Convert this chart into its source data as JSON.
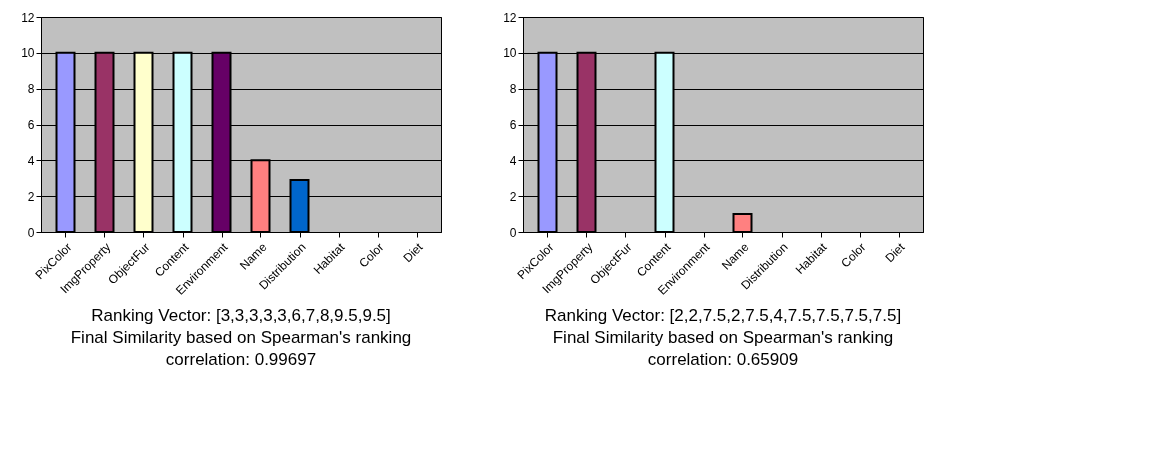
{
  "chart_data": [
    {
      "type": "bar",
      "categories": [
        "PixColor",
        "ImgProperty",
        "ObjectFur",
        "Content",
        "Environment",
        "Name",
        "Distribution",
        "Habitat",
        "Color",
        "Diet"
      ],
      "values": [
        10,
        10,
        10,
        10,
        10,
        4,
        2.9,
        0,
        0,
        0
      ],
      "colors": [
        "#9999ff",
        "#993366",
        "#ffffcc",
        "#ccffff",
        "#660066",
        "#ff8080",
        "#0066cc",
        null,
        null,
        null
      ],
      "ylim": [
        0,
        12
      ],
      "yticks": [
        0,
        2,
        4,
        6,
        8,
        10,
        12
      ],
      "grid": "y",
      "annotations": [
        "Ranking Vector: [3,3,3,3,3,6,7,8,9.5,9.5]",
        "Final Similarity based on Spearman's ranking correlation: 0.99697"
      ]
    },
    {
      "type": "bar",
      "categories": [
        "PixColor",
        "ImgProperty",
        "ObjectFur",
        "Content",
        "Environment",
        "Name",
        "Distribution",
        "Habitat",
        "Color",
        "Diet"
      ],
      "values": [
        10,
        10,
        0,
        10,
        0,
        1,
        0,
        0,
        0,
        0
      ],
      "colors": [
        "#9999ff",
        "#993366",
        null,
        "#ccffff",
        null,
        "#ff8080",
        null,
        null,
        null,
        null
      ],
      "ylim": [
        0,
        12
      ],
      "yticks": [
        0,
        2,
        4,
        6,
        8,
        10,
        12
      ],
      "grid": "y",
      "annotations": [
        "Ranking Vector: [2,2,7.5,2,7.5,4,7.5,7.5,7.5,7.5]",
        "Final Similarity based on Spearman's ranking correlation: 0.65909"
      ]
    }
  ]
}
